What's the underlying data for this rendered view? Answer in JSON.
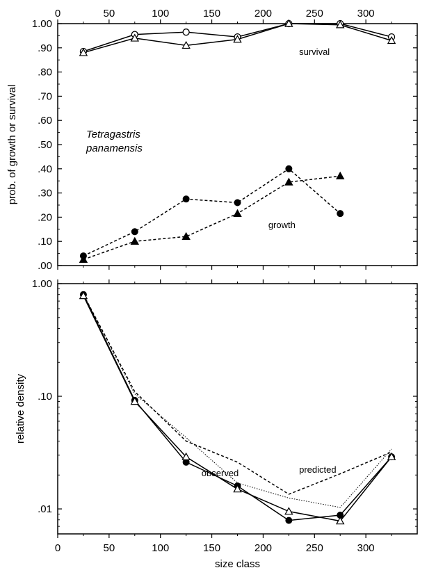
{
  "chart_data": [
    {
      "type": "line",
      "title": "",
      "xlabel": "",
      "ylabel": "prob. of growth or survival",
      "xlim": [
        0,
        350
      ],
      "ylim": [
        0,
        1.0
      ],
      "x_ticks": [
        0,
        50,
        100,
        150,
        200,
        250,
        300
      ],
      "x_tick_labels": [
        "0",
        "50",
        "100",
        "150",
        "200",
        "250",
        "300"
      ],
      "x_axis_position": "top",
      "y_ticks": [
        0,
        0.1,
        0.2,
        0.3,
        0.4,
        0.5,
        0.6,
        0.7,
        0.8,
        0.9,
        1.0
      ],
      "y_tick_labels": [
        ".00",
        ".10",
        ".20",
        ".30",
        ".40",
        ".50",
        ".60",
        ".70",
        ".80",
        ".90",
        "1.00"
      ],
      "grid": false,
      "species_label": [
        "Tetragastris",
        "panamensis"
      ],
      "series": [
        {
          "group": "survival",
          "marker": "open-circle",
          "style": "solid",
          "x": [
            25,
            75,
            125,
            175,
            225,
            275,
            325
          ],
          "values": [
            0.885,
            0.955,
            0.965,
            0.945,
            1.0,
            1.0,
            0.945
          ]
        },
        {
          "group": "survival",
          "marker": "open-triangle",
          "style": "solid",
          "x": [
            25,
            75,
            125,
            175,
            225,
            275,
            325
          ],
          "values": [
            0.88,
            0.94,
            0.91,
            0.935,
            1.0,
            0.995,
            0.93
          ]
        },
        {
          "group": "growth",
          "marker": "filled-circle",
          "style": "dashed",
          "x": [
            25,
            75,
            125,
            175,
            225,
            275
          ],
          "values": [
            0.04,
            0.14,
            0.275,
            0.26,
            0.4,
            0.215
          ]
        },
        {
          "group": "growth",
          "marker": "filled-triangle",
          "style": "dashed",
          "x": [
            25,
            75,
            125,
            175,
            225,
            275
          ],
          "values": [
            0.025,
            0.1,
            0.12,
            0.215,
            0.345,
            0.37
          ]
        }
      ],
      "annotations": [
        {
          "text": "survival",
          "x": 235,
          "y": 0.87
        },
        {
          "text": "growth",
          "x": 205,
          "y": 0.155
        }
      ]
    },
    {
      "type": "line",
      "title": "",
      "xlabel": "size class",
      "ylabel": "relative density",
      "xlim": [
        0,
        350
      ],
      "y_scale": "log",
      "ylim": [
        0.006,
        1.0
      ],
      "x_ticks": [
        0,
        50,
        100,
        150,
        200,
        250,
        300
      ],
      "x_tick_labels": [
        "0",
        "50",
        "100",
        "150",
        "200",
        "250",
        "300"
      ],
      "y_ticks": [
        0.01,
        0.1,
        1.0
      ],
      "y_tick_labels": [
        ".01",
        ".10",
        "1.00"
      ],
      "grid": false,
      "series": [
        {
          "group": "observed",
          "marker": "filled-circle",
          "style": "solid",
          "x": [
            25,
            75,
            125,
            175,
            225,
            275,
            325
          ],
          "values": [
            0.8,
            0.092,
            0.026,
            0.016,
            0.0079,
            0.0088,
            0.029
          ]
        },
        {
          "group": "observed",
          "marker": "open-triangle",
          "style": "solid",
          "x": [
            25,
            75,
            125,
            175,
            225,
            275,
            325
          ],
          "values": [
            0.78,
            0.09,
            0.029,
            0.015,
            0.0095,
            0.0078,
            0.029
          ]
        },
        {
          "group": "predicted",
          "marker": "none",
          "style": "dashed",
          "x": [
            25,
            75,
            125,
            175,
            225,
            275,
            325
          ],
          "values": [
            0.8,
            0.11,
            0.04,
            0.026,
            0.0135,
            0.0205,
            0.032
          ]
        },
        {
          "group": "predicted",
          "marker": "none",
          "style": "dotted",
          "x": [
            25,
            75,
            125,
            175,
            225,
            275,
            325
          ],
          "values": [
            0.8,
            0.105,
            0.043,
            0.017,
            0.0125,
            0.0103,
            0.034
          ]
        }
      ],
      "annotations": [
        {
          "text": "predicted",
          "x": 235,
          "y": 0.021
        },
        {
          "text": "observed",
          "x": 140,
          "y": 0.0195
        }
      ]
    }
  ]
}
